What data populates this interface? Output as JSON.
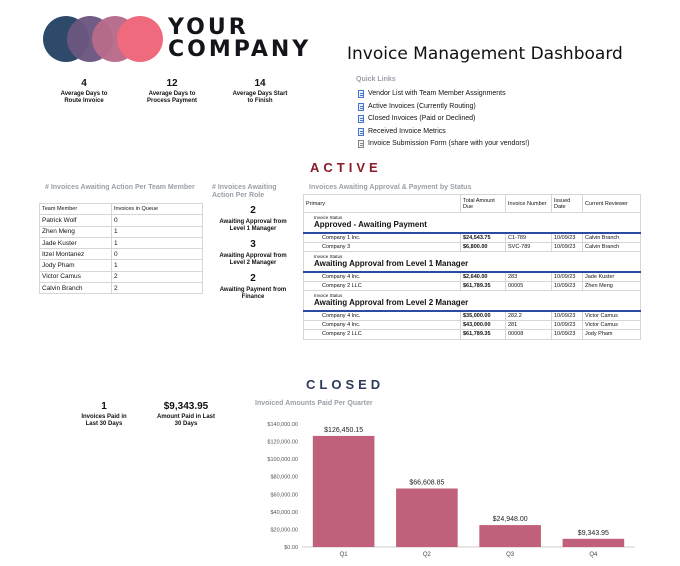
{
  "logo": {
    "line1": "YOUR",
    "line2": "COMPANY",
    "colors": [
      "#2d4a6b",
      "#6b5780",
      "#b86a8a",
      "#f06a7e"
    ]
  },
  "title": "Invoice Management Dashboard",
  "stats": [
    {
      "value": "4",
      "label_line1": "Average Days to",
      "label_line2": "Route Invoice"
    },
    {
      "value": "12",
      "label_line1": "Average Days to",
      "label_line2": "Process Payment"
    },
    {
      "value": "14",
      "label_line1": "Average Days Start",
      "label_line2": "to Finish"
    }
  ],
  "quick_links": {
    "title": "Quick Links",
    "items": [
      {
        "label": "Vendor List with Team Member Assignments",
        "icon": "document-icon"
      },
      {
        "label": "Active Invoices (Currently Routing)",
        "icon": "document-icon"
      },
      {
        "label": "Closed Invoices (Paid or Declined)",
        "icon": "document-icon"
      },
      {
        "label": "Received Invoice Metrics",
        "icon": "document-icon"
      },
      {
        "label": "Invoice Submission Form (share with your vendors!)",
        "icon": "form-icon"
      }
    ]
  },
  "active": {
    "heading": "ACTIVE",
    "heading_color": "#8b1a2b",
    "team": {
      "title": "# Invoices Awaiting Action Per Team Member",
      "col1": "Team Member",
      "col2": "Invoices in Queue",
      "rows": [
        {
          "name": "Patrick Wolf",
          "count": "0"
        },
        {
          "name": "Zhen Meng",
          "count": "1"
        },
        {
          "name": "Jade Kuster",
          "count": "1"
        },
        {
          "name": "Itzel Montanez",
          "count": "0"
        },
        {
          "name": "Jody Pham",
          "count": "1"
        },
        {
          "name": "Victor Camus",
          "count": "2"
        },
        {
          "name": "Calvin Branch",
          "count": "2"
        }
      ]
    },
    "roles": {
      "title": "# Invoices Awaiting Action Per Role",
      "items": [
        {
          "value": "2",
          "label_line1": "Awaiting Approval from",
          "label_line2": "Level 1 Manager"
        },
        {
          "value": "3",
          "label_line1": "Awaiting Approval from",
          "label_line2": "Level 2 Manager"
        },
        {
          "value": "2",
          "label_line1": "Awaiting Payment from",
          "label_line2": "Finance"
        }
      ]
    },
    "invoices": {
      "title": "Invoices Awaiting Approval & Payment by Status",
      "headers": {
        "primary": "Primary",
        "amount_line1": "Total Amount",
        "amount_line2": "Due",
        "number": "Invoice Number",
        "issued_line1": "Issued",
        "issued_line2": "Date",
        "reviewer": "Current Reviewer"
      },
      "group_label": "Invoice Status",
      "groups": [
        {
          "status": "Approved - Awaiting Payment",
          "rows": [
            {
              "company": "Company 1 Inc.",
              "amount": "$24,543.75",
              "number": "C1-789",
              "date": "10/09/23",
              "reviewer": "Calvin Branch"
            },
            {
              "company": "Company 3",
              "amount": "$6,800.00",
              "number": "SVC-789",
              "date": "10/09/23",
              "reviewer": "Calvin Branch"
            }
          ]
        },
        {
          "status": "Awaiting Approval from Level 1 Manager",
          "rows": [
            {
              "company": "Company 4 Inc.",
              "amount": "$2,640.00",
              "number": "283",
              "date": "10/09/23",
              "reviewer": "Jade Kuster"
            },
            {
              "company": "Company 2 LLC",
              "amount": "$61,789.35",
              "number": "00005",
              "date": "10/09/23",
              "reviewer": "Zhen Meng"
            }
          ]
        },
        {
          "status": "Awaiting Approval from Level 2 Manager",
          "rows": [
            {
              "company": "Company 4 Inc.",
              "amount": "$35,000.00",
              "number": "282.2",
              "date": "10/09/23",
              "reviewer": "Victor Camus"
            },
            {
              "company": "Company 4 Inc.",
              "amount": "$43,000.00",
              "number": "281",
              "date": "10/09/23",
              "reviewer": "Victor Camus"
            },
            {
              "company": "Company 2 LLC",
              "amount": "$61,789.35",
              "number": "00008",
              "date": "10/09/23",
              "reviewer": "Jody Pham"
            }
          ]
        }
      ]
    }
  },
  "closed": {
    "heading": "CLOSED",
    "heading_color": "#2d3a5a",
    "stats": [
      {
        "value": "1",
        "label_line1": "Invoices Paid in",
        "label_line2": "Last 30 Days"
      },
      {
        "value": "$9,343.95",
        "label_line1": "Amount Paid in Last",
        "label_line2": "30 Days"
      }
    ]
  },
  "chart_data": {
    "type": "bar",
    "title": "Invoiced Amounts Paid Per Quarter",
    "categories": [
      "Q1",
      "Q2",
      "Q3",
      "Q4"
    ],
    "values": [
      126450.15,
      66608.85,
      24948.0,
      9343.95
    ],
    "data_labels": [
      "$126,450.15",
      "$66,608.85",
      "$24,948.00",
      "$9,343.95"
    ],
    "yticks": [
      0,
      20000,
      40000,
      60000,
      80000,
      100000,
      120000,
      140000
    ],
    "ytick_labels": [
      "$0.00",
      "$20,000.00",
      "$40,000.00",
      "$60,000.00",
      "$80,000.00",
      "$100,000.00",
      "$120,000.00",
      "$140,000.00"
    ],
    "ylim": [
      0,
      140000
    ],
    "grid": false,
    "bar_color": "#c1607a"
  }
}
